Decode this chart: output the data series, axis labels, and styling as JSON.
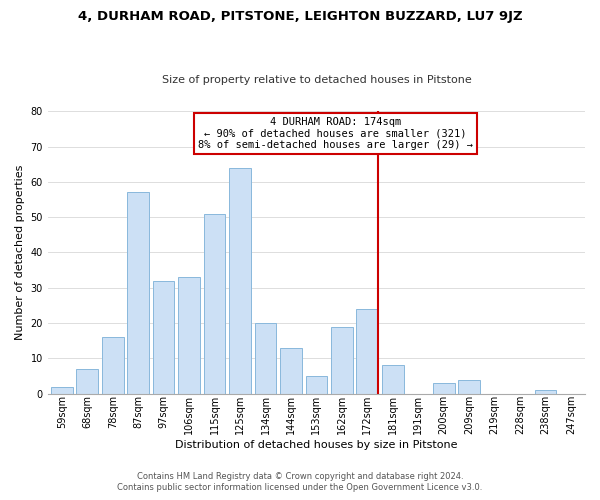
{
  "title": "4, DURHAM ROAD, PITSTONE, LEIGHTON BUZZARD, LU7 9JZ",
  "subtitle": "Size of property relative to detached houses in Pitstone",
  "xlabel": "Distribution of detached houses by size in Pitstone",
  "ylabel": "Number of detached properties",
  "bar_labels": [
    "59sqm",
    "68sqm",
    "78sqm",
    "87sqm",
    "97sqm",
    "106sqm",
    "115sqm",
    "125sqm",
    "134sqm",
    "144sqm",
    "153sqm",
    "162sqm",
    "172sqm",
    "181sqm",
    "191sqm",
    "200sqm",
    "209sqm",
    "219sqm",
    "228sqm",
    "238sqm",
    "247sqm"
  ],
  "bar_values": [
    2,
    7,
    16,
    57,
    32,
    33,
    51,
    64,
    20,
    13,
    5,
    19,
    24,
    8,
    0,
    3,
    4,
    0,
    0,
    1,
    0
  ],
  "bar_color": "#cce0f5",
  "bar_edgecolor": "#89b8dc",
  "vline_x": 12,
  "vline_color": "#cc0000",
  "annotation_title": "4 DURHAM ROAD: 174sqm",
  "annotation_line1": "← 90% of detached houses are smaller (321)",
  "annotation_line2": "8% of semi-detached houses are larger (29) →",
  "annotation_box_color": "#ffffff",
  "annotation_box_edgecolor": "#cc0000",
  "ylim": [
    0,
    80
  ],
  "yticks": [
    0,
    10,
    20,
    30,
    40,
    50,
    60,
    70,
    80
  ],
  "footer1": "Contains HM Land Registry data © Crown copyright and database right 2024.",
  "footer2": "Contains public sector information licensed under the Open Government Licence v3.0.",
  "background_color": "#ffffff",
  "grid_color": "#d8d8d8",
  "title_fontsize": 9.5,
  "subtitle_fontsize": 8.0,
  "xlabel_fontsize": 8.0,
  "ylabel_fontsize": 8.0,
  "tick_fontsize": 7.0,
  "footer_fontsize": 6.0,
  "annotation_fontsize": 7.5
}
